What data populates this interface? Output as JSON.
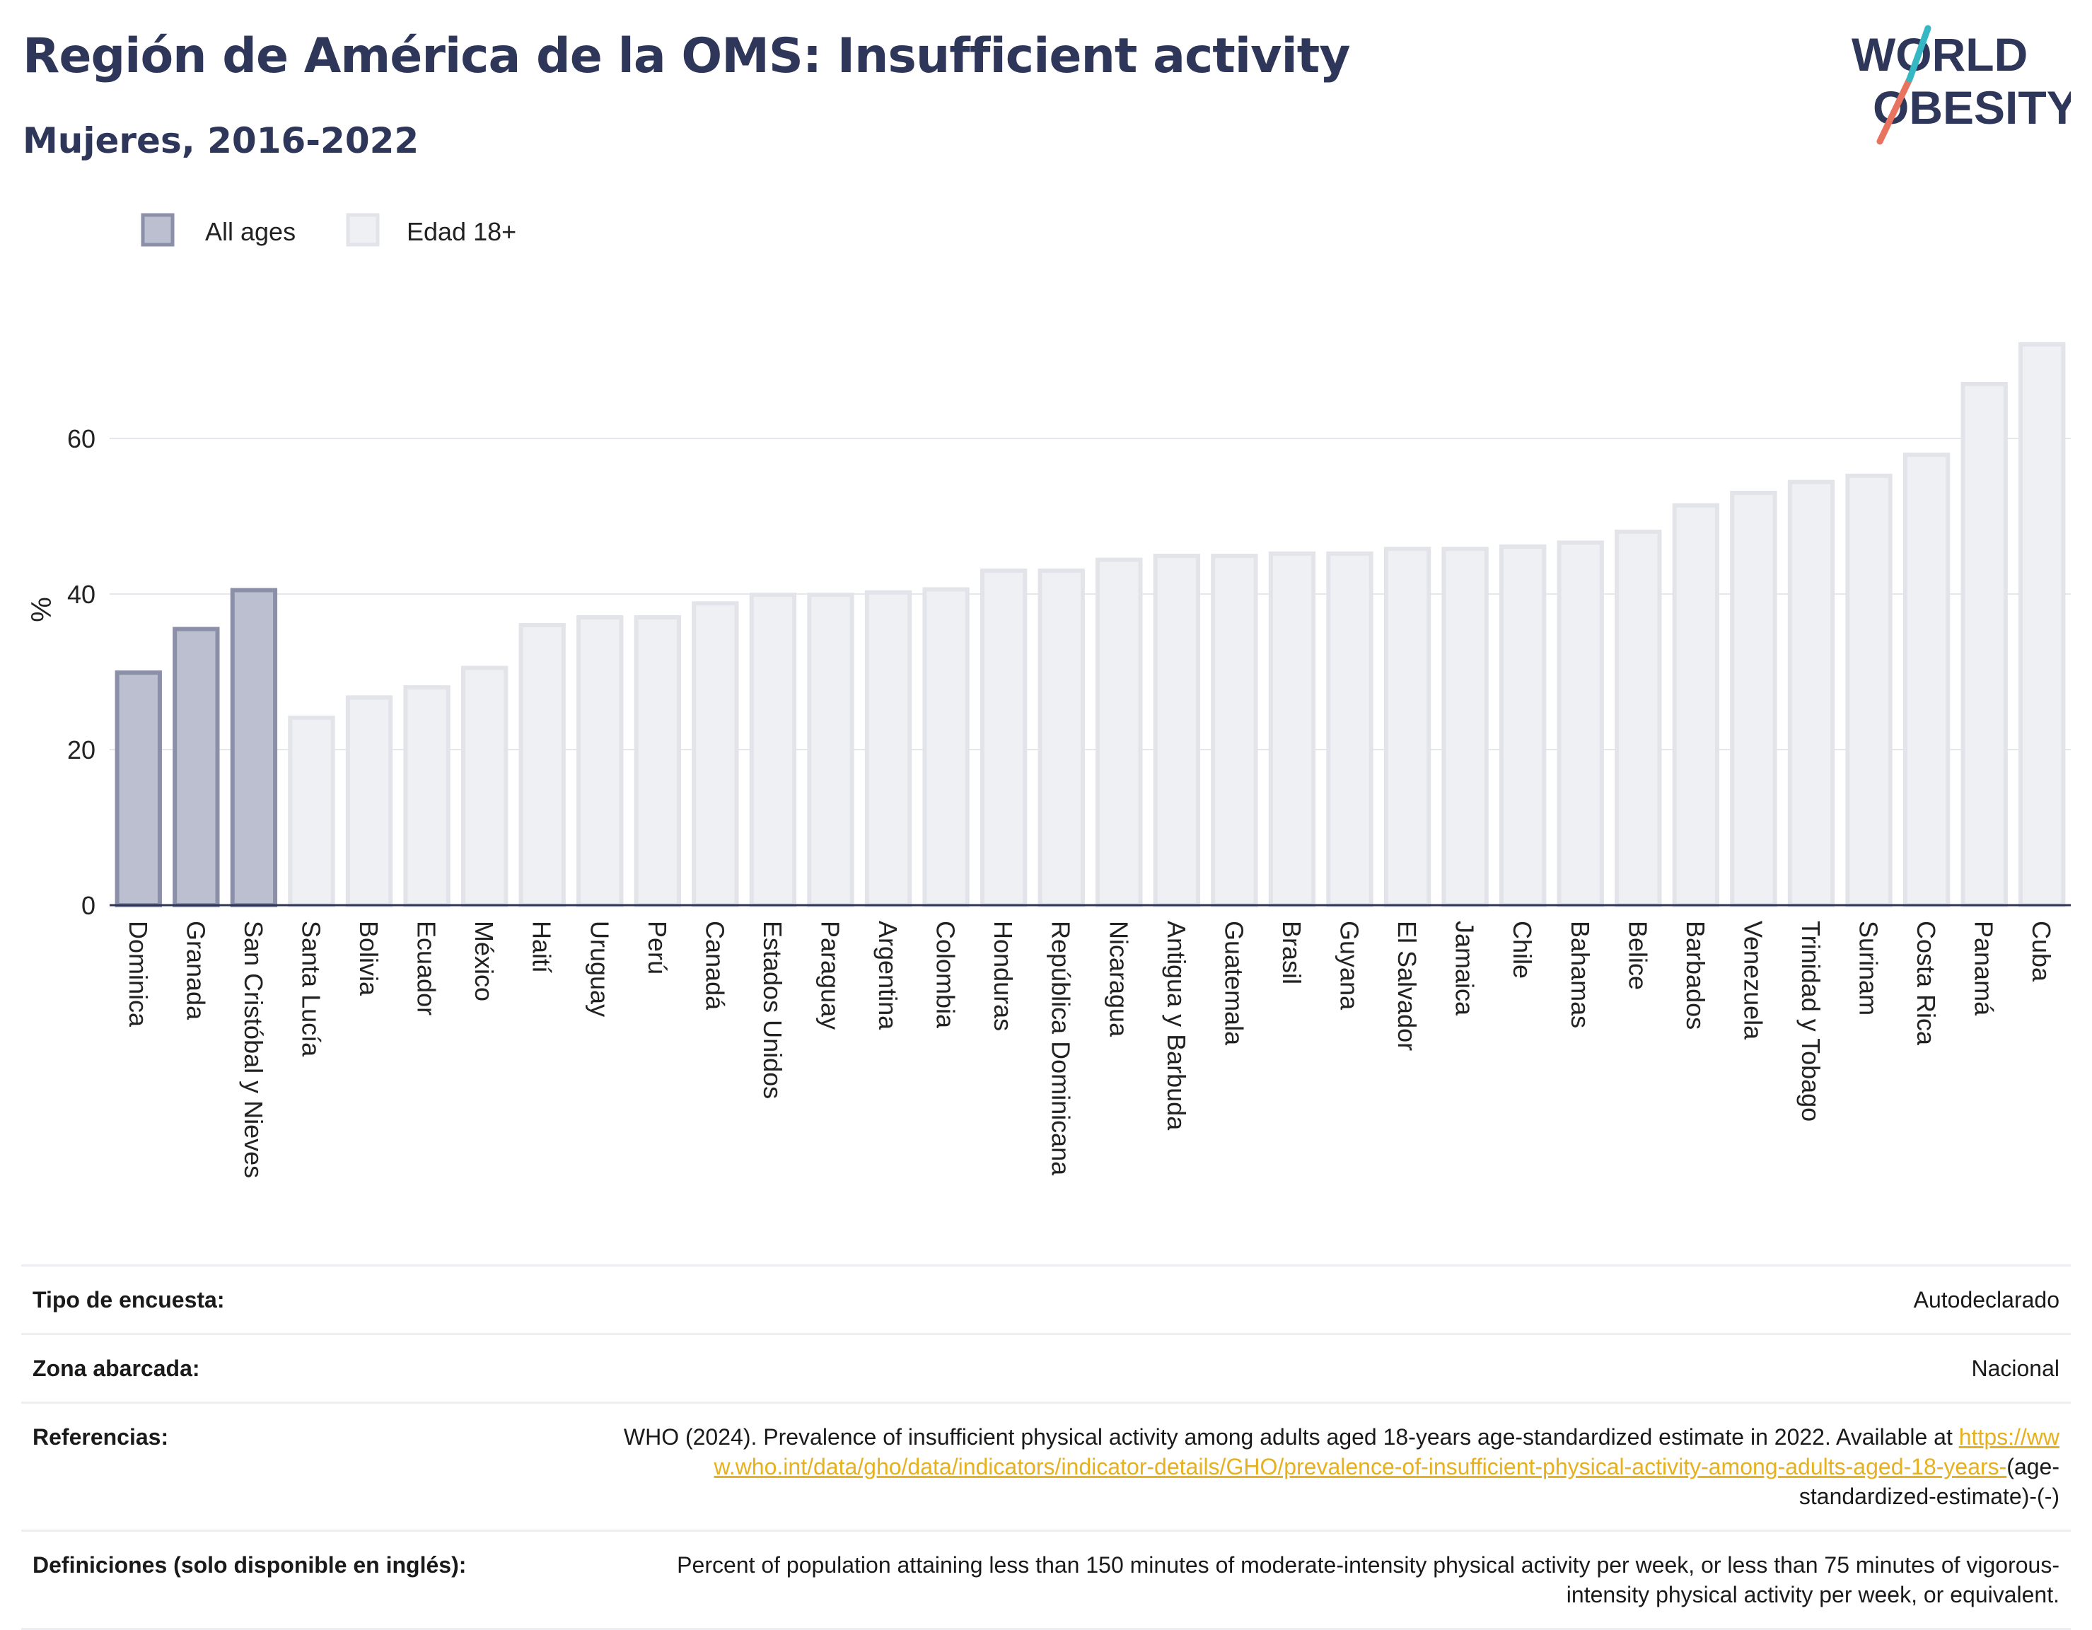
{
  "header": {
    "title": "Región de América de la OMS: Insufficient activity",
    "subtitle": "Mujeres, 2016-2022"
  },
  "logo": {
    "line1": "WORLD",
    "line2": "OBESITY"
  },
  "chart_data": {
    "type": "bar",
    "ylabel": "%",
    "xlabel": "",
    "ylim": [
      0,
      75
    ],
    "yticks": [
      0,
      20,
      40,
      60
    ],
    "grid": true,
    "legend_position": "top-left",
    "series": [
      {
        "name": "All ages",
        "color": "#9da1b8"
      },
      {
        "name": "Edad 18+",
        "color": "#eceef3"
      }
    ],
    "categories": [
      "Dominica",
      "Granada",
      "San Cristóbal y Nieves",
      "Santa Lucía",
      "Bolivia",
      "Ecuador",
      "México",
      "Haití",
      "Uruguay",
      "Perú",
      "Canadá",
      "Estados Unidos",
      "Paraguay",
      "Argentina",
      "Colombia",
      "Honduras",
      "República Dominicana",
      "Nicaragua",
      "Antigua y Barbuda",
      "Guatemala",
      "Brasil",
      "Guyana",
      "El Salvador",
      "Jamaica",
      "Chile",
      "Bahamas",
      "Belice",
      "Barbados",
      "Venezuela",
      "Trinidad y Tobago",
      "Surinam",
      "Costa Rica",
      "Panamá",
      "Cuba"
    ],
    "values": [
      29.9,
      35.5,
      40.5,
      24.1,
      26.7,
      28.0,
      30.5,
      36.0,
      37.0,
      37.0,
      38.8,
      39.9,
      39.9,
      40.2,
      40.6,
      43.0,
      43.0,
      44.4,
      44.9,
      44.9,
      45.2,
      45.2,
      45.8,
      45.8,
      46.1,
      46.6,
      48.0,
      51.4,
      53.0,
      54.4,
      55.2,
      57.9,
      67.0,
      72.1
    ],
    "series_index": [
      0,
      0,
      0,
      1,
      1,
      1,
      1,
      1,
      1,
      1,
      1,
      1,
      1,
      1,
      1,
      1,
      1,
      1,
      1,
      1,
      1,
      1,
      1,
      1,
      1,
      1,
      1,
      1,
      1,
      1,
      1,
      1,
      1,
      1
    ]
  },
  "info": [
    {
      "key": "Tipo de encuesta:",
      "value": "Autodeclarado"
    },
    {
      "key": "Zona abarcada:",
      "value": "Nacional"
    },
    {
      "key": "Referencias:",
      "value_prefix": "WHO (2024). Prevalence of insufficient physical activity among adults aged 18-years age-standardized estimate in 2022. Available at ",
      "value_link": "https://www.who.int/data/gho/data/indicators/indicator-details/GHO/prevalence-of-insufficient-physical-activity-among-adults-aged-18-years-",
      "value_suffix": "(age-standardized-estimate)-(-)"
    },
    {
      "key": "Definiciones (solo disponible en inglés):",
      "value": "Percent of population attaining less than 150 minutes of moderate-intensity physical activity per week, or less than 75 minutes of vigorous-intensity physical activity per week, or equivalent."
    }
  ]
}
